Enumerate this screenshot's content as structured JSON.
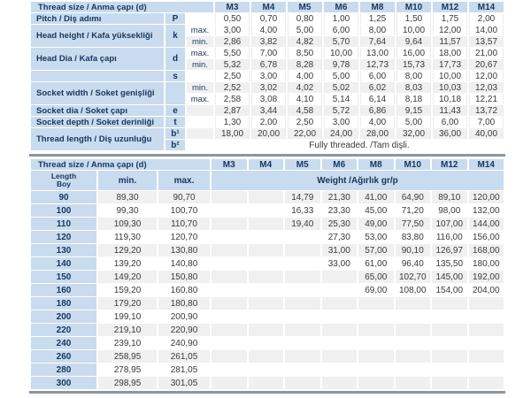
{
  "colors": {
    "header_bg": "#c9dbee",
    "label_text": "#17375d",
    "value_text": "#3a3a3a",
    "stripe": "#f0f0f0",
    "divider": "#8e959b"
  },
  "spec_table": {
    "title": "Thread size / Anma çapı (d)",
    "sizes": [
      "M3",
      "M4",
      "M5",
      "M6",
      "M8",
      "M10",
      "M12",
      "M14"
    ],
    "note": "Fully threaded. /Tam dişli.",
    "rows": [
      {
        "label": "Pitch / Diş adımı",
        "labelSpan": 1,
        "sym": "P",
        "symSpan": 1,
        "sub": "",
        "values": [
          "0,50",
          "0,70",
          "0,80",
          "1,00",
          "1,25",
          "1,50",
          "1,75",
          "2,00"
        ]
      },
      {
        "label": "Head height / Kafa yüksekliği",
        "labelSpan": 2,
        "sym": "k",
        "symSpan": 2,
        "sub": "max.",
        "values": [
          "3,00",
          "4,00",
          "5,00",
          "6,00",
          "8,00",
          "10,00",
          "12,00",
          "14,00"
        ]
      },
      {
        "sub": "min.",
        "values": [
          "2,86",
          "3,82",
          "4,82",
          "5,70",
          "7,64",
          "9,64",
          "11,57",
          "13,57"
        ]
      },
      {
        "label": "Head Dia / Kafa çapı",
        "labelSpan": 2,
        "sym": "d",
        "symSpan": 2,
        "sub": "max.",
        "values": [
          "5,50",
          "7,00",
          "8,50",
          "10,00",
          "13,00",
          "16,00",
          "18,00",
          "21,00"
        ]
      },
      {
        "sub": "min.",
        "values": [
          "5,32",
          "6,78",
          "8,28",
          "9,78",
          "12,73",
          "15,73",
          "17,73",
          "20,67"
        ]
      },
      {
        "label": "",
        "labelSpan": 1,
        "sym": "s",
        "symSpan": 1,
        "sub": "",
        "values": [
          "2,50",
          "3,00",
          "4,00",
          "5,00",
          "6,00",
          "8,00",
          "10,00",
          "12,00"
        ]
      },
      {
        "label": "Socket width / Soket genişliği",
        "labelSpan": 2,
        "sym": "",
        "symSpan": 2,
        "sub": "min.",
        "values": [
          "2,52",
          "3,02",
          "4,02",
          "5,02",
          "6,02",
          "8,03",
          "10,03",
          "12,03"
        ]
      },
      {
        "sub": "max.",
        "values": [
          "2,58",
          "3,08",
          "4,10",
          "5,14",
          "6,14",
          "8,18",
          "10,18",
          "12,21"
        ]
      },
      {
        "label": "Socket dia / Soket çapı",
        "labelSpan": 1,
        "sym": "e",
        "symSpan": 1,
        "sub": "",
        "values": [
          "2,87",
          "3,44",
          "4,58",
          "5,72",
          "6,86",
          "9,15",
          "11,43",
          "13,72"
        ]
      },
      {
        "label": "Socket depth / Soket derinliği",
        "labelSpan": 1,
        "sym": "t",
        "symSpan": 1,
        "sub": "",
        "values": [
          "1,30",
          "2,00",
          "2,50",
          "3,00",
          "4,00",
          "5,00",
          "6,00",
          "7,00"
        ]
      },
      {
        "label": "Thread length / Diş uzunluğu",
        "labelSpan": 2,
        "sym": "b¹",
        "symSpan": 1,
        "sub": "",
        "values": [
          "18,00",
          "20,00",
          "22,00",
          "24,00",
          "28,00",
          "32,00",
          "36,00",
          "40,00"
        ]
      },
      {
        "sym": "b²",
        "symSpan": 1,
        "sub": "",
        "note": true
      }
    ]
  },
  "weight_table": {
    "title": "Thread size / Anma çapı (d)",
    "sizes": [
      "M3",
      "M4",
      "M5",
      "M6",
      "M8",
      "M10",
      "M12",
      "M14"
    ],
    "length_label_en": "Length",
    "length_label_tr": "Boy",
    "min_label": "min.",
    "max_label": "max.",
    "weight_label": "Weight /Ağırlık gr/p",
    "rows": [
      {
        "length": "90",
        "min": "89,30",
        "max": "90,70",
        "weights": [
          "",
          "",
          "14,79",
          "21,30",
          "41,00",
          "64,90",
          "89,10",
          "120,00"
        ]
      },
      {
        "length": "100",
        "min": "99,30",
        "max": "100,70",
        "weights": [
          "",
          "",
          "16,33",
          "23,30",
          "45,00",
          "71,20",
          "98,00",
          "132,00"
        ]
      },
      {
        "length": "110",
        "min": "109,30",
        "max": "110,70",
        "weights": [
          "",
          "",
          "19,40",
          "25,30",
          "49,00",
          "77,50",
          "107,00",
          "144,00"
        ]
      },
      {
        "length": "120",
        "min": "119,30",
        "max": "120,70",
        "weights": [
          "",
          "",
          "",
          "27,30",
          "53,00",
          "83,80",
          "116,00",
          "156,00"
        ]
      },
      {
        "length": "130",
        "min": "129,20",
        "max": "130,80",
        "weights": [
          "",
          "",
          "",
          "31,00",
          "57,00",
          "90,10",
          "126,97",
          "168,00"
        ]
      },
      {
        "length": "140",
        "min": "139,20",
        "max": "140,80",
        "weights": [
          "",
          "",
          "",
          "33,00",
          "61,00",
          "96,40",
          "135,50",
          "180,00"
        ]
      },
      {
        "length": "150",
        "min": "149,20",
        "max": "150,80",
        "weights": [
          "",
          "",
          "",
          "",
          "65,00",
          "102,70",
          "145,00",
          "192,00"
        ]
      },
      {
        "length": "160",
        "min": "159,20",
        "max": "160,80",
        "weights": [
          "",
          "",
          "",
          "",
          "69,00",
          "108,00",
          "154,00",
          "204,00"
        ]
      },
      {
        "length": "180",
        "min": "179,20",
        "max": "180,80",
        "weights": [
          "",
          "",
          "",
          "",
          "",
          "",
          "",
          ""
        ]
      },
      {
        "length": "200",
        "min": "199,10",
        "max": "200,90",
        "weights": [
          "",
          "",
          "",
          "",
          "",
          "",
          "",
          ""
        ]
      },
      {
        "length": "220",
        "min": "219,10",
        "max": "220,90",
        "weights": [
          "",
          "",
          "",
          "",
          "",
          "",
          "",
          ""
        ]
      },
      {
        "length": "240",
        "min": "239,10",
        "max": "240,90",
        "weights": [
          "",
          "",
          "",
          "",
          "",
          "",
          "",
          ""
        ]
      },
      {
        "length": "260",
        "min": "258,95",
        "max": "261,05",
        "weights": [
          "",
          "",
          "",
          "",
          "",
          "",
          "",
          ""
        ]
      },
      {
        "length": "280",
        "min": "278,95",
        "max": "281,05",
        "weights": [
          "",
          "",
          "",
          "",
          "",
          "",
          "",
          ""
        ]
      },
      {
        "length": "300",
        "min": "298,95",
        "max": "301,05",
        "weights": [
          "",
          "",
          "",
          "",
          "",
          "",
          "",
          ""
        ]
      }
    ]
  }
}
